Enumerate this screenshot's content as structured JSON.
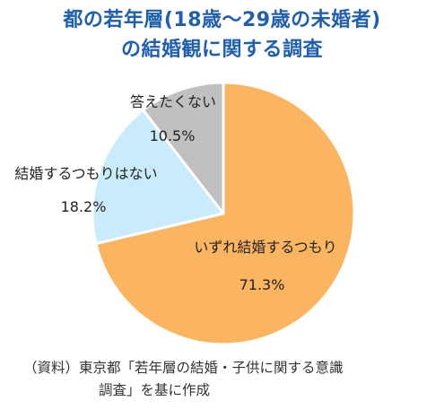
{
  "chart_data": {
    "type": "pie",
    "title": [
      "都の若年層(18歳～29歳の未婚者)",
      "の結婚観に関する調査"
    ],
    "slices": [
      {
        "label": "いずれ結婚するつもり",
        "value": 71.3,
        "value_label": "71.3%",
        "color": "#fbb45f"
      },
      {
        "label": "結婚するつもりはない",
        "value": 18.2,
        "value_label": "18.2%",
        "color": "#c9ebfb"
      },
      {
        "label": "答えたくない",
        "value": 10.5,
        "value_label": "10.5%",
        "color": "#c0c0c0"
      }
    ],
    "start_angle": "12 o'clock",
    "direction": "clockwise",
    "legend": "none (labels on/next to slices)"
  },
  "source_note": {
    "line1": "（資料）東京都「若年層の結婚・子供に関する意識",
    "line2": "調査」を基に作成"
  }
}
